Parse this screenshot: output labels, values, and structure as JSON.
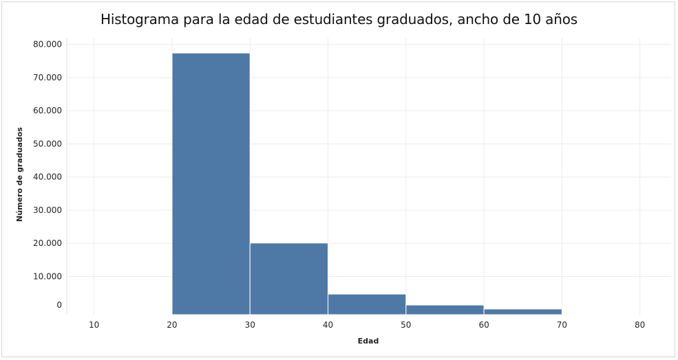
{
  "chart_data": {
    "type": "bar",
    "title": "Histograma para la edad de estudiantes graduados, ancho de 10 años",
    "xlabel": "Edad",
    "ylabel": "Número de graduados",
    "bin_edges": [
      20,
      30,
      40,
      50,
      60,
      70
    ],
    "values": [
      77400,
      20100,
      4700,
      1400,
      200
    ],
    "xlim": [
      6.5,
      84
    ],
    "ylim": [
      -1500,
      82000
    ],
    "x_ticks": [
      10,
      20,
      30,
      40,
      50,
      60,
      70,
      80
    ],
    "x_tick_labels": [
      "10",
      "20",
      "30",
      "40",
      "50",
      "60",
      "70",
      "80"
    ],
    "y_ticks": [
      0,
      10000,
      20000,
      30000,
      40000,
      50000,
      60000,
      70000,
      80000
    ],
    "y_tick_labels": [
      "0",
      "10.000",
      "20.000",
      "30.000",
      "40.000",
      "50.000",
      "60.000",
      "70.000",
      "80.000"
    ],
    "grid": true,
    "colors": {
      "bar": "#4e79a7",
      "grid": "#ececec",
      "bar_edge": "#ffffff"
    }
  }
}
